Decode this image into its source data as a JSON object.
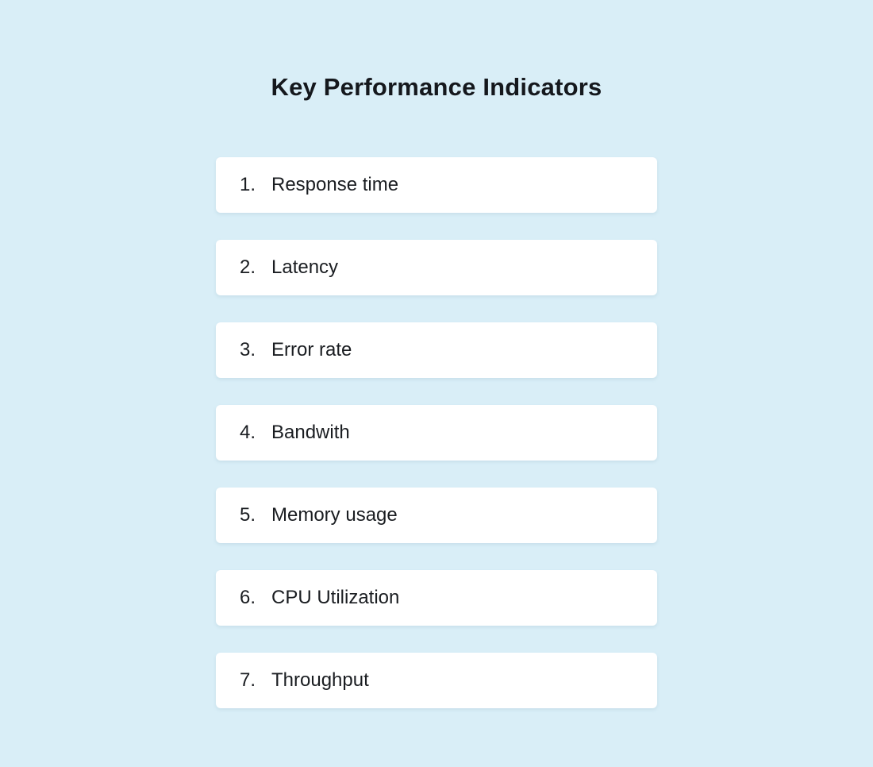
{
  "page": {
    "title": "Key Performance Indicators",
    "background_color": "#d9eef7",
    "card_color": "#ffffff",
    "text_color": "#1a1d21"
  },
  "list": {
    "items": [
      {
        "number": "1.",
        "label": "Response time"
      },
      {
        "number": "2.",
        "label": "Latency"
      },
      {
        "number": "3.",
        "label": "Error rate"
      },
      {
        "number": "4.",
        "label": "Bandwith"
      },
      {
        "number": "5.",
        "label": "Memory usage"
      },
      {
        "number": "6.",
        "label": "CPU Utilization"
      },
      {
        "number": "7.",
        "label": "Throughput"
      }
    ]
  }
}
